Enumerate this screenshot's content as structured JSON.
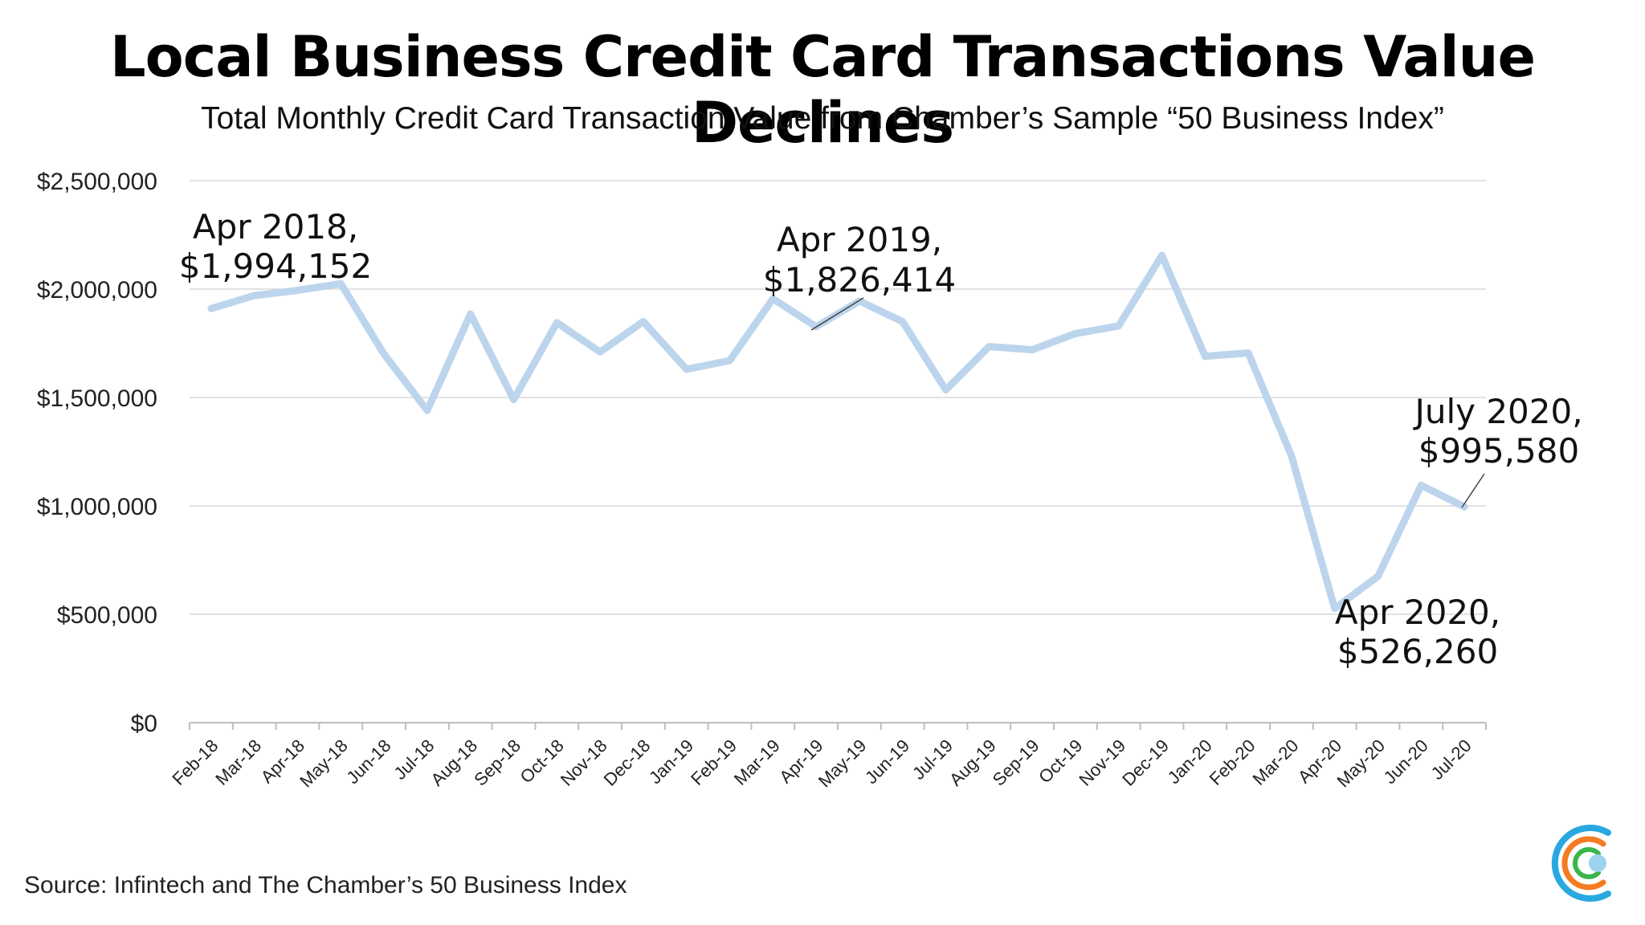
{
  "header": {
    "title": "Local Business Credit Card Transactions Value Declines",
    "subtitle": "Total Monthly Credit Card Transaction Value from Chamber’s Sample “50 Business Index”"
  },
  "footer": {
    "source": "Source: Infintech and The Chamber’s 50 Business Index"
  },
  "logo": {
    "icon": "chamber-logo-icon",
    "colors": [
      "#29a8e0",
      "#f47b20",
      "#3bb54a",
      "#9dd3f0"
    ]
  },
  "chart_data": {
    "type": "line",
    "title": "Local Business Credit Card Transactions Value Declines",
    "subtitle": "Total Monthly Credit Card Transaction Value from Chamber’s Sample “50 Business Index”",
    "xlabel": "",
    "ylabel": "",
    "ylim": [
      0,
      2500000
    ],
    "yticks": [
      0,
      500000,
      1000000,
      1500000,
      2000000,
      2500000
    ],
    "ytick_labels": [
      "$0",
      "$500,000",
      "$1,000,000",
      "$1,500,000",
      "$2,000,000",
      "$2,500,000"
    ],
    "grid": true,
    "line_color": "#bcd5ec",
    "categories": [
      "Feb-18",
      "Mar-18",
      "Apr-18",
      "May-18",
      "Jun-18",
      "Jul-18",
      "Aug-18",
      "Sep-18",
      "Oct-18",
      "Nov-18",
      "Dec-18",
      "Jan-19",
      "Feb-19",
      "Mar-19",
      "Apr-19",
      "May-19",
      "Jun-19",
      "Jul-19",
      "Aug-19",
      "Sep-19",
      "Oct-19",
      "Nov-19",
      "Dec-19",
      "Jan-20",
      "Feb-20",
      "Mar-20",
      "Apr-20",
      "May-20",
      "Jun-20",
      "Jul-20"
    ],
    "values": [
      1910000,
      1970000,
      1994152,
      2025000,
      1700000,
      1440000,
      1885000,
      1490000,
      1845000,
      1710000,
      1850000,
      1630000,
      1670000,
      1955000,
      1826414,
      1945000,
      1850000,
      1535000,
      1735000,
      1720000,
      1795000,
      1830000,
      2155000,
      1690000,
      1705000,
      1230000,
      526260,
      675000,
      1095000,
      995580
    ],
    "annotations": [
      {
        "index": 2,
        "line1": "Apr 2018,",
        "line2": "$1,994,152"
      },
      {
        "index": 14,
        "line1": "Apr 2019,",
        "line2": "$1,826,414"
      },
      {
        "index": 26,
        "line1": "Apr 2020,",
        "line2": "$526,260"
      },
      {
        "index": 29,
        "line1": "July 2020,",
        "line2": "$995,580"
      }
    ]
  }
}
